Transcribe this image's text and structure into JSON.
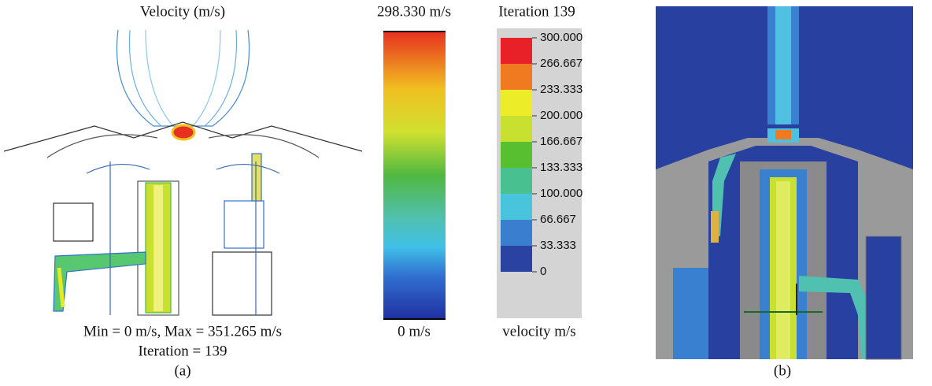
{
  "panel_a": {
    "title": "Velocity (m/s)",
    "caption_stats": "Min = 0 m/s, Max = 351.265 m/s",
    "caption_iteration": "Iteration = 139",
    "label": "(a)"
  },
  "gradient_bar": {
    "top_label": "298.330 m/s",
    "bottom_label": "0 m/s"
  },
  "legend": {
    "title": "Iteration 139",
    "unit_label": "velocity m/s",
    "labels": [
      "300.000",
      "266.667",
      "233.333",
      "200.000",
      "166.667",
      "133.333",
      "100.000",
      "66.667",
      "33.333",
      "0"
    ]
  },
  "panel_b": {
    "label": "(b)"
  }
}
